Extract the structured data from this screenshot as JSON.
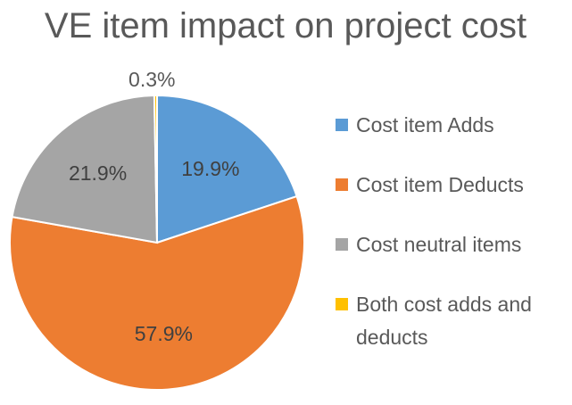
{
  "chart_data": {
    "type": "pie",
    "title": "VE item impact on project cost",
    "categories": [
      "Cost item Adds",
      "Cost item Deducts",
      "Cost neutral items",
      "Both cost adds and deducts"
    ],
    "values": [
      19.9,
      57.9,
      21.9,
      0.3
    ],
    "data_labels": [
      "19.9%",
      "57.9%",
      "21.9%",
      "0.3%"
    ],
    "colors": [
      "#5B9BD5",
      "#ED7D31",
      "#A5A5A5",
      "#FFC000"
    ],
    "legend_position": "right"
  }
}
